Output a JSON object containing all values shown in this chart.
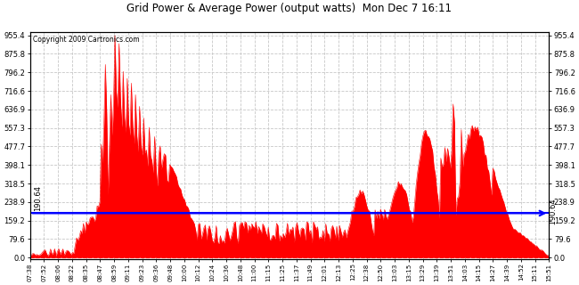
{
  "title": "Grid Power & Average Power (output watts)  Mon Dec 7 16:11",
  "copyright": "Copyright 2009 Cartronics.com",
  "avg_line_value": 190.64,
  "y_max": 955.4,
  "y_min": 0.0,
  "yticks": [
    0.0,
    79.6,
    159.2,
    238.9,
    318.5,
    398.1,
    477.7,
    557.3,
    636.9,
    716.6,
    796.2,
    875.8,
    955.4
  ],
  "x_labels": [
    "07:38",
    "07:52",
    "08:06",
    "08:22",
    "08:35",
    "08:47",
    "08:59",
    "09:11",
    "09:23",
    "09:36",
    "09:48",
    "10:00",
    "10:12",
    "10:24",
    "10:36",
    "10:48",
    "11:00",
    "11:15",
    "11:25",
    "11:37",
    "11:49",
    "12:01",
    "12:13",
    "12:25",
    "12:38",
    "12:50",
    "13:03",
    "13:15",
    "13:29",
    "13:39",
    "13:51",
    "14:03",
    "14:15",
    "14:27",
    "14:39",
    "14:52",
    "15:11",
    "15:51"
  ],
  "fill_color": "#ff0000",
  "bg_color": "#ffffff",
  "grid_color": "#c8c8c8",
  "avg_line_color": "#0000ff",
  "border_color": "#000000"
}
